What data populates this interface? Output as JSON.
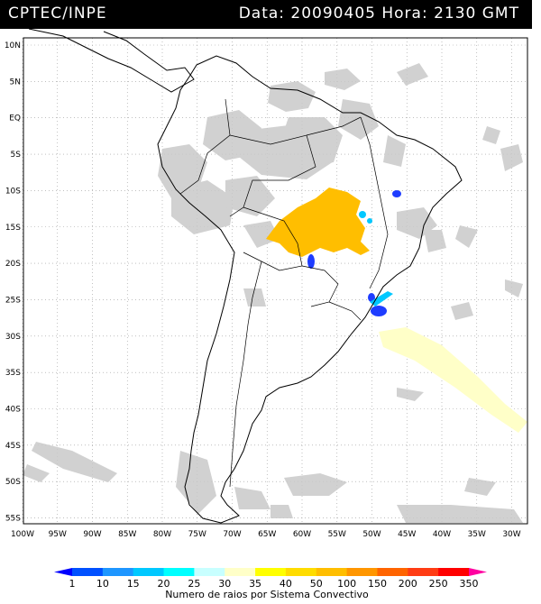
{
  "header": {
    "agency": "CPTEC/INPE",
    "data_label": "Data:",
    "date": "20090405",
    "hora_label": "Hora:",
    "time": "2130 GMT"
  },
  "map": {
    "lat_labels": [
      "10N",
      "5N",
      "EQ",
      "5S",
      "10S",
      "15S",
      "20S",
      "25S",
      "30S",
      "35S",
      "40S",
      "45S",
      "50S",
      "55S"
    ],
    "lon_labels": [
      "100W",
      "95W",
      "90W",
      "85W",
      "80W",
      "75W",
      "70W",
      "65W",
      "60W",
      "55W",
      "50W",
      "45W",
      "40W",
      "35W",
      "30W"
    ],
    "lat_range": [
      -56,
      14
    ],
    "lon_range": [
      -100,
      -29
    ]
  },
  "legend": {
    "values": [
      "1",
      "10",
      "15",
      "20",
      "25",
      "30",
      "35",
      "40",
      "50",
      "100",
      "150",
      "200",
      "250",
      "350"
    ],
    "colors": [
      "#0000ff",
      "#0050ff",
      "#1e96ff",
      "#00c8ff",
      "#00ffff",
      "#c8ffff",
      "#ffffc8",
      "#ffff00",
      "#ffdc00",
      "#ffbe00",
      "#ff9600",
      "#ff6400",
      "#ff3c14",
      "#ff0000",
      "#ff00a0"
    ],
    "title": "Numero de raios por Sistema Convectivo"
  }
}
